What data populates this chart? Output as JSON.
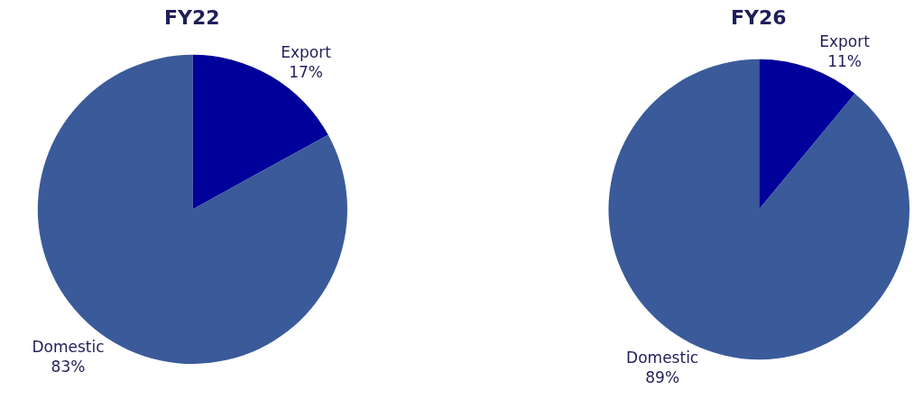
{
  "chart_data": [
    {
      "type": "pie",
      "title": "FY22",
      "categories": [
        "Export",
        "Domestic"
      ],
      "values": [
        17,
        83
      ],
      "value_labels": [
        "17%",
        "83%"
      ],
      "colors": [
        "#00009a",
        "#3a5a9a"
      ]
    },
    {
      "type": "pie",
      "title": "FY26",
      "categories": [
        "Export",
        "Domestic"
      ],
      "values": [
        11,
        89
      ],
      "value_labels": [
        "11%",
        "89%"
      ],
      "colors": [
        "#00009a",
        "#3a5a9a"
      ]
    }
  ]
}
